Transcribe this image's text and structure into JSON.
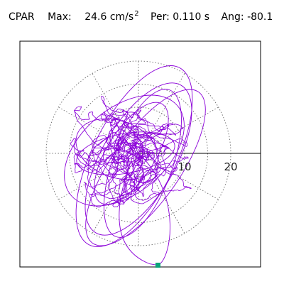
{
  "header": {
    "station": "CPAR",
    "max_label": "Max:",
    "max_value": "24.6 cm/s",
    "max_exp": "2",
    "per_label": "Per:",
    "per_value": "0.110 s",
    "ang_label": "Ang:",
    "ang_value": "-80.1"
  },
  "chart_data": {
    "type": "polar-trace",
    "radial_ticks": [
      10,
      20
    ],
    "radial_tick_labels": [
      "10",
      "20"
    ],
    "radial_max": 20,
    "angular_spokes_deg": [
      0,
      30,
      60,
      90,
      120,
      150,
      180,
      210,
      240,
      270,
      300,
      330
    ],
    "max_amplitude": 24.6,
    "max_angle_deg": -80.1,
    "trace_color": "#8b00d9",
    "marker_color": "#0aa37a",
    "grid": "dotted"
  }
}
